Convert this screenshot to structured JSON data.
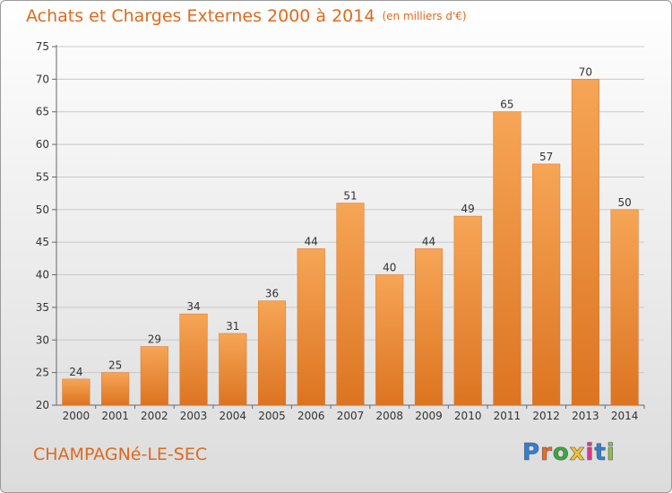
{
  "chart_data": {
    "type": "bar",
    "title": "Achats et Charges Externes 2000 à 2014",
    "subtitle": "(en milliers d'€)",
    "xlabel": "",
    "ylabel": "",
    "categories": [
      "2000",
      "2001",
      "2002",
      "2003",
      "2004",
      "2005",
      "2006",
      "2007",
      "2008",
      "2009",
      "2010",
      "2011",
      "2012",
      "2013",
      "2014"
    ],
    "values": [
      24,
      25,
      29,
      34,
      31,
      36,
      44,
      51,
      40,
      44,
      49,
      65,
      57,
      70,
      50
    ],
    "ylim": [
      20,
      75
    ],
    "yticks": [
      20,
      25,
      30,
      35,
      40,
      45,
      50,
      55,
      60,
      65,
      70,
      75
    ],
    "grid": true,
    "bar_color": "#f0923a",
    "legend": "none"
  },
  "footer": {
    "commune": "CHAMPAGNé-LE-SEC",
    "logo": "Proxiti"
  },
  "colors": {
    "title": "#dd6a1f",
    "logo_letters": [
      "#2f7fd6",
      "#f06a24",
      "#3aa93a",
      "#f2c12e",
      "#d63a8a",
      "#2f7fd6",
      "#8bc34a"
    ]
  }
}
